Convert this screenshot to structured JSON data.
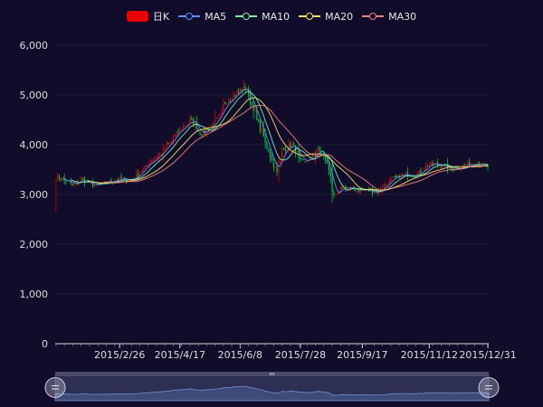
{
  "chart_data": {
    "type": "candlestick",
    "legend": [
      {
        "name": "日K",
        "kind": "candle",
        "color": "#ec0000"
      },
      {
        "name": "MA5",
        "kind": "line",
        "color": "#5b8ff9"
      },
      {
        "name": "MA10",
        "kind": "line",
        "color": "#7cf0a4"
      },
      {
        "name": "MA20",
        "kind": "line",
        "color": "#f8e16c"
      },
      {
        "name": "MA30",
        "kind": "line",
        "color": "#f08080"
      }
    ],
    "up_color": "#ec0000",
    "down_color": "#00da3c",
    "y_ticks": [
      "0",
      "1,000",
      "2,000",
      "3,000",
      "4,000",
      "5,000",
      "6,000"
    ],
    "ylim": [
      0,
      6000
    ],
    "x_tick_labels": [
      "2015/2/26",
      "2015/4/17",
      "2015/6/8",
      "2015/7/28",
      "2015/9/17",
      "2015/11/12",
      "2015/12/31"
    ],
    "x_range": [
      "2015/1/5",
      "2015/12/31"
    ],
    "close_anchors": [
      [
        "2015-01-05",
        3350
      ],
      [
        "2015-01-12",
        3280
      ],
      [
        "2015-01-19",
        3180
      ],
      [
        "2015-01-26",
        3310
      ],
      [
        "2015-02-02",
        3200
      ],
      [
        "2015-02-09",
        3180
      ],
      [
        "2015-02-16",
        3250
      ],
      [
        "2015-02-26",
        3300
      ],
      [
        "2015-03-09",
        3300
      ],
      [
        "2015-03-16",
        3450
      ],
      [
        "2015-03-23",
        3650
      ],
      [
        "2015-04-01",
        3800
      ],
      [
        "2015-04-10",
        4050
      ],
      [
        "2015-04-17",
        4280
      ],
      [
        "2015-04-27",
        4500
      ],
      [
        "2015-05-06",
        4230
      ],
      [
        "2015-05-13",
        4350
      ],
      [
        "2015-05-20",
        4500
      ],
      [
        "2015-05-27",
        4900
      ],
      [
        "2015-06-05",
        5050
      ],
      [
        "2015-06-12",
        5150
      ],
      [
        "2015-06-18",
        4750
      ],
      [
        "2015-06-26",
        4200
      ],
      [
        "2015-07-03",
        3700
      ],
      [
        "2015-07-08",
        3500
      ],
      [
        "2015-07-13",
        3900
      ],
      [
        "2015-07-21",
        4000
      ],
      [
        "2015-07-28",
        3650
      ],
      [
        "2015-08-05",
        3700
      ],
      [
        "2015-08-12",
        3900
      ],
      [
        "2015-08-18",
        3700
      ],
      [
        "2015-08-25",
        2950
      ],
      [
        "2015-09-01",
        3150
      ],
      [
        "2015-09-10",
        3100
      ],
      [
        "2015-09-17",
        3100
      ],
      [
        "2015-09-30",
        3050
      ],
      [
        "2015-10-12",
        3300
      ],
      [
        "2015-10-23",
        3400
      ],
      [
        "2015-11-02",
        3400
      ],
      [
        "2015-11-12",
        3600
      ],
      [
        "2015-11-23",
        3600
      ],
      [
        "2015-11-30",
        3500
      ],
      [
        "2015-12-08",
        3550
      ],
      [
        "2015-12-22",
        3650
      ],
      [
        "2015-12-31",
        3550
      ]
    ],
    "datazoom": {
      "start": 0,
      "end": 100
    }
  }
}
